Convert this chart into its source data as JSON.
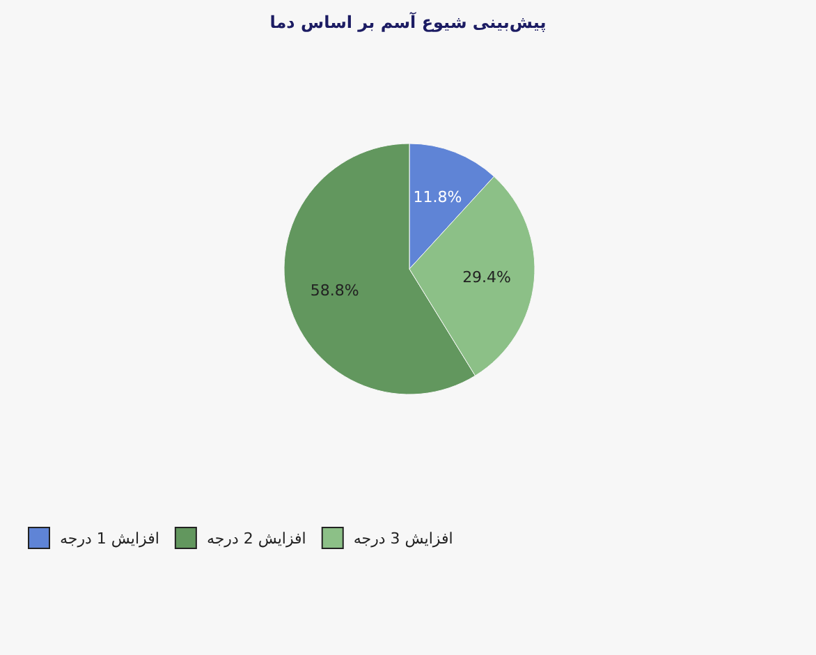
{
  "chart_data": {
    "type": "pie",
    "title": "پیش‌بینی شیوع آسم بر اساس دما",
    "categories": [
      "افزایش 1 درجه",
      "افزایش 2 درجه",
      "افزایش 3 درجه"
    ],
    "values": [
      11.8,
      58.8,
      29.4
    ],
    "colors": [
      "#5f84d6",
      "#62975e",
      "#8cc087"
    ],
    "value_labels": [
      "11.8%",
      "58.8%",
      "29.4%"
    ],
    "legend": "bottom left"
  }
}
